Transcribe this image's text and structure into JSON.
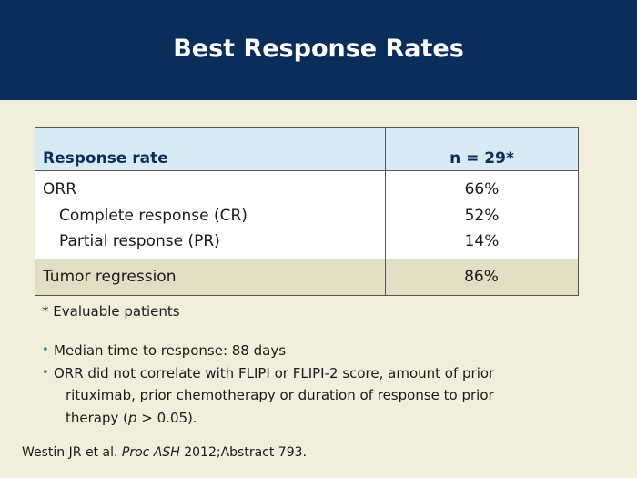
{
  "slide": {
    "title": "Best Response Rates"
  },
  "table": {
    "header": {
      "label": "Response rate",
      "value": "n = 29*"
    },
    "rows": [
      {
        "label": "ORR",
        "value": "66%"
      },
      {
        "label": "Complete response (CR)",
        "value": "52%"
      },
      {
        "label": "Partial response (PR)",
        "value": "14%"
      }
    ],
    "summary": {
      "label": "Tumor regression",
      "value": "86%"
    }
  },
  "footnote": {
    "marker": "*",
    "text": "Evaluable patients"
  },
  "bullets": {
    "item1": "Median time to response: 88 days",
    "item2": {
      "line1": "ORR did not correlate with FLIPI or FLIPI-2 score, amount of prior",
      "line2": "rituximab, prior chemotherapy or duration of response to prior",
      "line3_a": "therapy (",
      "line3_p": "p",
      "line3_b": " > 0.05)."
    },
    "marker": "•"
  },
  "citation": {
    "authors": "Westin JR et al. ",
    "journal": "Proc ASH",
    "details": " 2012;Abstract 793."
  },
  "colors": {
    "header_bg": "#0b2d5b",
    "page_bg": "#f2eedc",
    "table_header_bg": "#d8ebf5",
    "summary_row_bg": "#e2ddc3",
    "bullet_color": "#2c8a9a"
  }
}
